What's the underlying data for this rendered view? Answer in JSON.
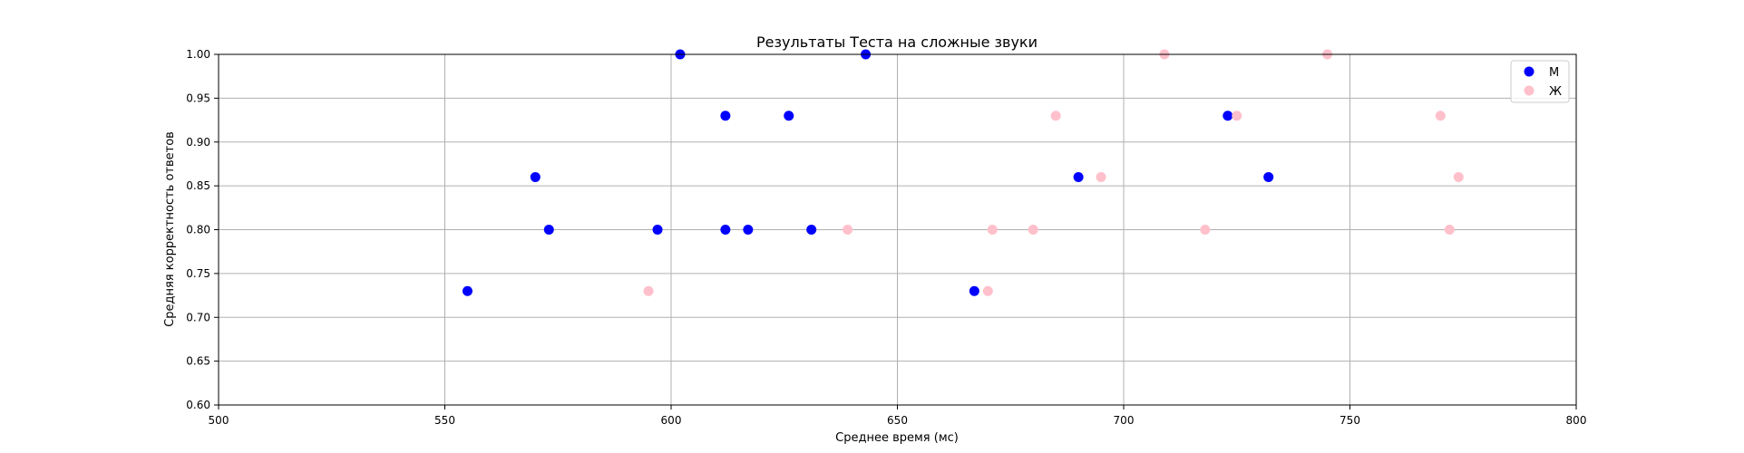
{
  "chart_data": {
    "type": "scatter",
    "title": "Результаты Теста на сложные звуки",
    "xlabel": "Среднее время (мс)",
    "ylabel": "Средняя корректность ответов",
    "xlim": [
      500,
      800
    ],
    "ylim": [
      0.6,
      1.0
    ],
    "xticks": [
      "500",
      "550",
      "600",
      "650",
      "700",
      "750",
      "800"
    ],
    "yticks": [
      "0.60",
      "0.65",
      "0.70",
      "0.75",
      "0.80",
      "0.85",
      "0.90",
      "0.95",
      "1.00"
    ],
    "grid": true,
    "legend_position": "top-right",
    "series": [
      {
        "name": "М",
        "color": "#0000ff",
        "points": [
          {
            "x": 555,
            "y": 0.73
          },
          {
            "x": 570,
            "y": 0.86
          },
          {
            "x": 573,
            "y": 0.8
          },
          {
            "x": 597,
            "y": 0.8
          },
          {
            "x": 602,
            "y": 1.0
          },
          {
            "x": 612,
            "y": 0.93
          },
          {
            "x": 612,
            "y": 0.8
          },
          {
            "x": 617,
            "y": 0.8
          },
          {
            "x": 626,
            "y": 0.93
          },
          {
            "x": 631,
            "y": 0.8
          },
          {
            "x": 643,
            "y": 1.0
          },
          {
            "x": 667,
            "y": 0.73
          },
          {
            "x": 690,
            "y": 0.86
          },
          {
            "x": 723,
            "y": 0.93
          },
          {
            "x": 732,
            "y": 0.86
          }
        ]
      },
      {
        "name": "Ж",
        "color": "#ffc0cb",
        "points": [
          {
            "x": 595,
            "y": 0.73
          },
          {
            "x": 639,
            "y": 0.8
          },
          {
            "x": 670,
            "y": 0.73
          },
          {
            "x": 671,
            "y": 0.8
          },
          {
            "x": 680,
            "y": 0.8
          },
          {
            "x": 685,
            "y": 0.93
          },
          {
            "x": 695,
            "y": 0.86
          },
          {
            "x": 709,
            "y": 1.0
          },
          {
            "x": 718,
            "y": 0.8
          },
          {
            "x": 725,
            "y": 0.93
          },
          {
            "x": 745,
            "y": 1.0
          },
          {
            "x": 770,
            "y": 0.93
          },
          {
            "x": 772,
            "y": 0.8
          },
          {
            "x": 774,
            "y": 0.86
          }
        ]
      }
    ]
  }
}
